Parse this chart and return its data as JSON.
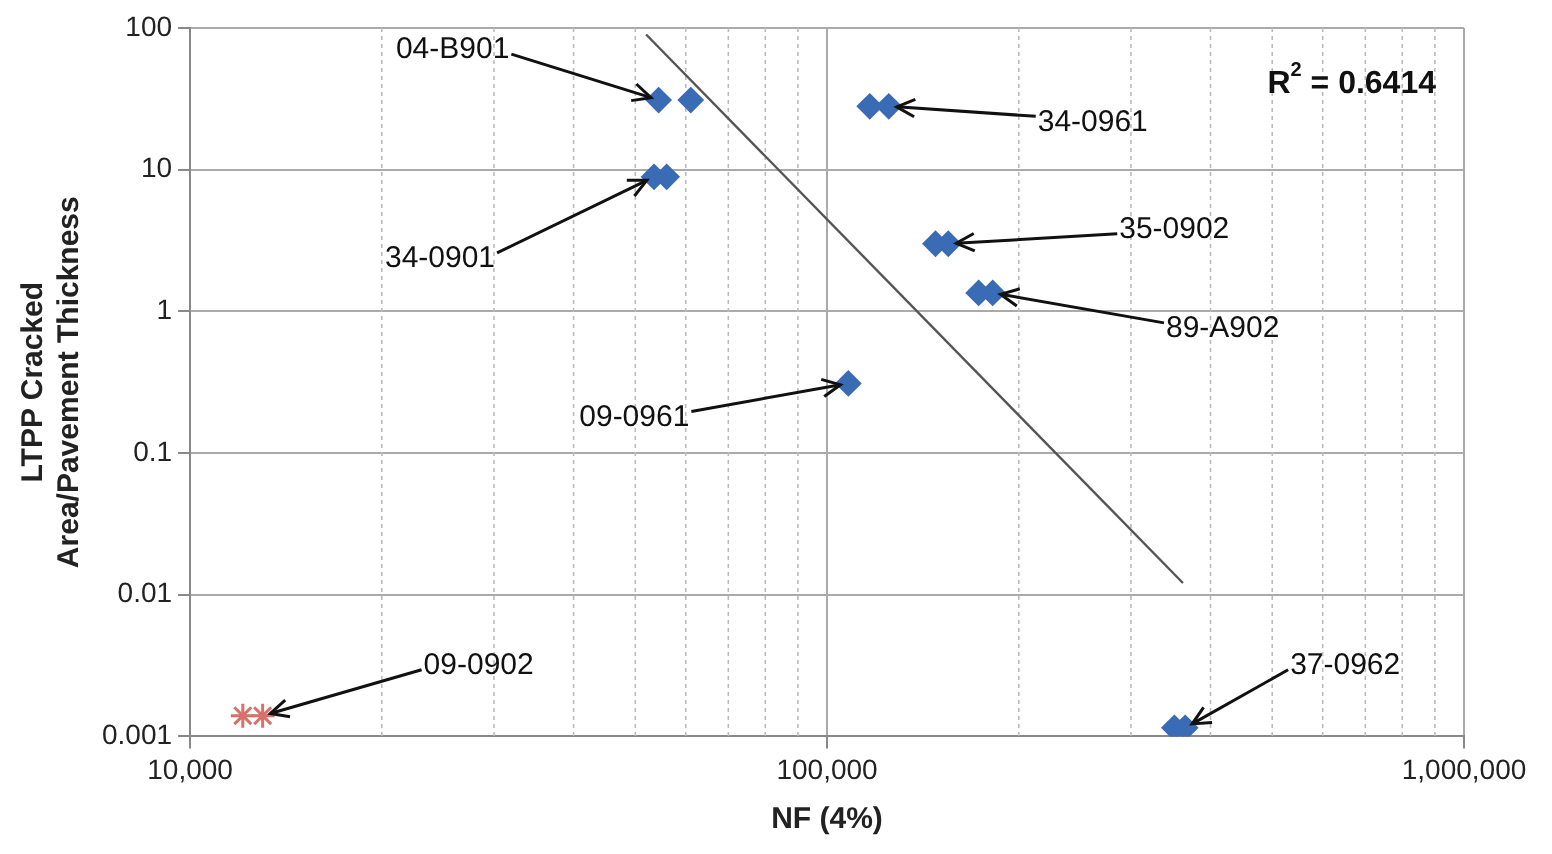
{
  "chart_data": {
    "type": "scatter",
    "xlabel": "NF (4%)",
    "ylabel": "LTPP Cracked Area/Pavement Thickness",
    "log": "xy",
    "grid": true,
    "legend": false,
    "xlim": [
      10000,
      1000000
    ],
    "xticks": [
      {
        "value": 10000,
        "label": "10,000"
      },
      {
        "value": 100000,
        "label": "100,000"
      },
      {
        "value": 1000000,
        "label": "1,000,000"
      }
    ],
    "ylim": [
      0.001,
      100
    ],
    "yticks": [
      0.001,
      0.01,
      0.1,
      1,
      10,
      100
    ],
    "series": [
      {
        "color": "#3a6bb5",
        "marker": "diamond",
        "x": [
          54400,
          61100,
          116700,
          125000,
          53500,
          56000,
          148000,
          155000,
          173000,
          182000,
          108000,
          351000,
          365000
        ],
        "values": [
          31,
          31,
          28,
          28,
          8.9,
          8.9,
          3.0,
          3.0,
          1.35,
          1.35,
          0.31,
          0.00115,
          0.00115
        ]
      },
      {
        "color": "#d9706b",
        "marker": "cross",
        "x": [
          12100,
          13000
        ],
        "values": [
          0.0014,
          0.0014
        ]
      },
      {
        "type": "line",
        "color": "#555555",
        "marker": "none",
        "x": [
          52000,
          362000
        ],
        "values": [
          90,
          0.0121
        ]
      }
    ],
    "annotations": [
      {
        "text": "04-B901",
        "x": 54400,
        "y": 31
      },
      {
        "text": "34-0961",
        "x": 125000,
        "y": 28
      },
      {
        "text": "34-0901",
        "x": 53500,
        "y": 8.9
      },
      {
        "text": "35-0902",
        "x": 155000,
        "y": 3.0
      },
      {
        "text": "89-A902",
        "x": 182000,
        "y": 1.35
      },
      {
        "text": "09-0961",
        "x": 108000,
        "y": 0.31
      },
      {
        "text": "09-0902",
        "x": 13000,
        "y": 0.0014
      },
      {
        "text": "37-0962",
        "x": 365000,
        "y": 0.00115
      },
      "R$^{2}$ = 0.6414"
    ]
  }
}
